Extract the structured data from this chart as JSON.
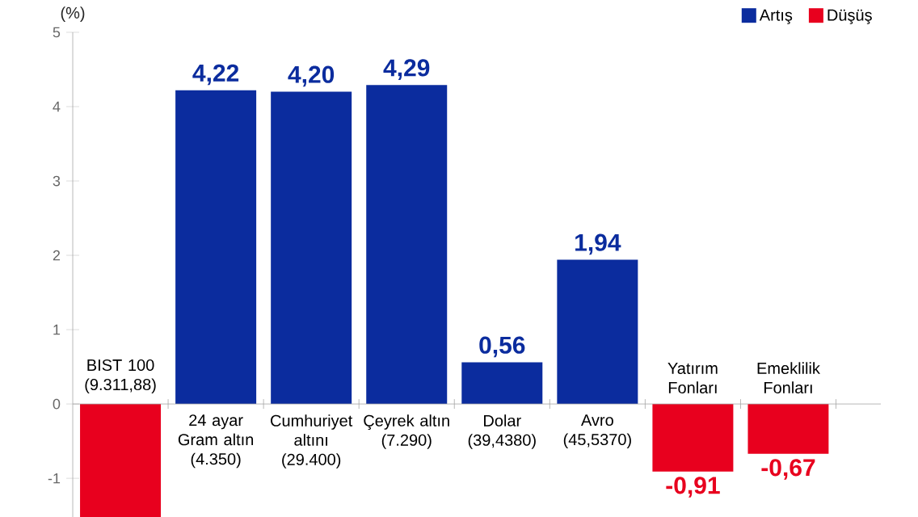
{
  "chart_data": {
    "type": "bar",
    "ylabel": "(%)",
    "categories": [
      "BIST 100 (9.311,88)",
      "24 ayar Gram altın (4.350)",
      "Cumhuriyet altını (29.400)",
      "Çeyrek altın (7.290)",
      "Dolar (39,4380)",
      "Avro (45,5370)",
      "Yatırım Fonları",
      "Emeklilik Fonları"
    ],
    "series": [
      {
        "name": "Artış",
        "color": "#0b2c9e",
        "values": [
          null,
          4.22,
          4.2,
          4.29,
          0.56,
          1.94,
          null,
          null
        ],
        "value_labels": [
          null,
          "4,22",
          "4,20",
          "4,29",
          "0,56",
          "1,94",
          null,
          null
        ]
      },
      {
        "name": "Düşüş",
        "color": "#e8001e",
        "values": [
          -1.52,
          null,
          null,
          null,
          null,
          null,
          -0.91,
          -0.67
        ],
        "value_labels": [
          null,
          null,
          null,
          null,
          null,
          null,
          "-0,91",
          "-0,67"
        ]
      }
    ],
    "ylim": [
      -1.52,
      5
    ],
    "yticks": [
      -1,
      0,
      1,
      2,
      3,
      4,
      5
    ],
    "grid": false,
    "legend": "top right"
  }
}
